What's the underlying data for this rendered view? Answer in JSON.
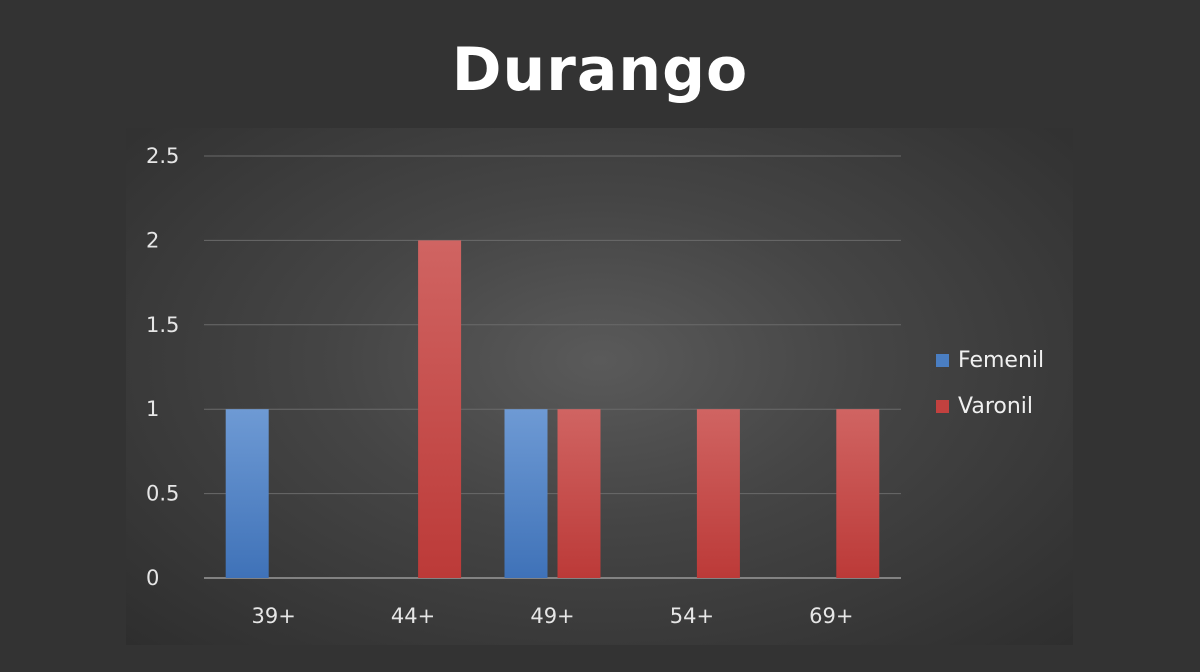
{
  "chart_data": {
    "type": "bar",
    "title": "Durango",
    "categories": [
      "39+",
      "44+",
      "49+",
      "54+",
      "69+"
    ],
    "series": [
      {
        "name": "Femenil",
        "values": [
          1,
          0,
          1,
          0,
          0
        ],
        "color": "#4a7ec2"
      },
      {
        "name": "Varonil",
        "values": [
          0,
          2,
          1,
          1,
          1
        ],
        "color": "#c2413f"
      }
    ],
    "xlabel": "",
    "ylabel": "",
    "ylim": [
      0,
      2.5
    ],
    "yticks": [
      "0",
      "0.5",
      "1",
      "1.5",
      "2",
      "2.5"
    ],
    "grid": true,
    "legend": "right"
  },
  "colors": {
    "background": "#333333",
    "gridline": "#6a6a6a",
    "text": "#ffffff"
  }
}
